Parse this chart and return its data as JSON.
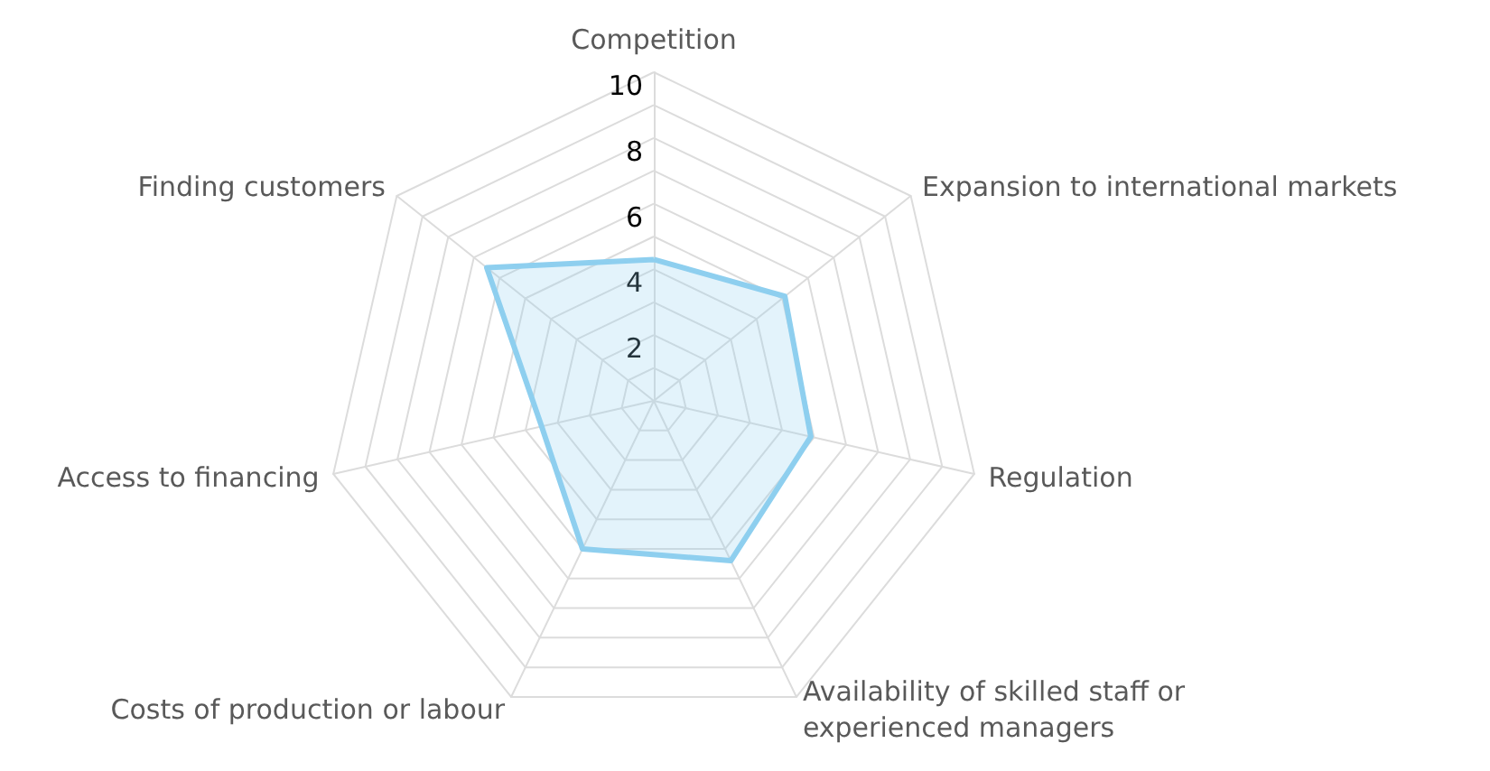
{
  "chart_data": {
    "type": "radar",
    "categories": [
      "Competition",
      "Expansion to international markets",
      "Regulation",
      "Availability of skilled staff or\nexperienced managers",
      "Costs of production or labour",
      "Access to financing",
      "Finding customers"
    ],
    "series": [
      {
        "color": "#8ecfef",
        "values": [
          4.3,
          5.1,
          4.9,
          5.4,
          5.0,
          3.5,
          6.5
        ]
      }
    ],
    "ylim": [
      0,
      10
    ],
    "yticks": [
      2,
      4,
      6,
      8,
      10
    ],
    "grid": true,
    "marker": "none",
    "line_style": "solid"
  }
}
